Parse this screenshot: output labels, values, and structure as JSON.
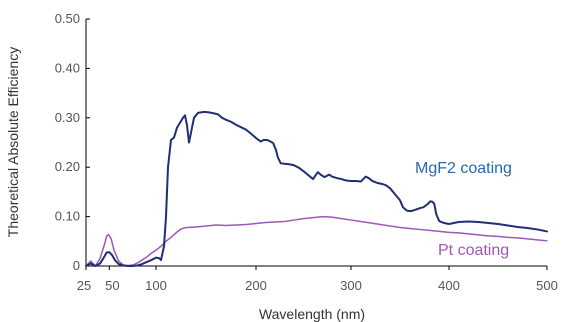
{
  "chart_data": {
    "type": "line",
    "title": "",
    "xlabel": "Wavelength (nm)",
    "ylabel": "Theoretical Absolute Efficiency",
    "xlim": [
      25,
      500
    ],
    "ylim": [
      0,
      0.5
    ],
    "grid": false,
    "x_tick_values": [
      25,
      50,
      100,
      200,
      300,
      400,
      500
    ],
    "x_tick_labels": [
      "25",
      "50",
      "100",
      "200",
      "300",
      "400",
      "500"
    ],
    "y_tick_values": [
      0,
      0.1,
      0.2,
      0.3,
      0.4,
      0.5
    ],
    "y_tick_labels": [
      "0",
      "0.10",
      "0.20",
      "0.30",
      "0.40",
      "0.50"
    ],
    "series": [
      {
        "name": "MgF2 coating",
        "label": "MgF2 coating",
        "color": "#1f2f73",
        "label_color": "#2a67b2",
        "points": [
          [
            25,
            0.0
          ],
          [
            30,
            0.005
          ],
          [
            35,
            0.0
          ],
          [
            40,
            0.005
          ],
          [
            45,
            0.02
          ],
          [
            47,
            0.027
          ],
          [
            50,
            0.028
          ],
          [
            53,
            0.022
          ],
          [
            56,
            0.012
          ],
          [
            60,
            0.004
          ],
          [
            65,
            0.001
          ],
          [
            70,
            0.0
          ],
          [
            75,
            0.0
          ],
          [
            80,
            0.001
          ],
          [
            85,
            0.004
          ],
          [
            90,
            0.008
          ],
          [
            95,
            0.012
          ],
          [
            100,
            0.017
          ],
          [
            103,
            0.016
          ],
          [
            105,
            0.012
          ],
          [
            108,
            0.04
          ],
          [
            110,
            0.1
          ],
          [
            112,
            0.2
          ],
          [
            115,
            0.255
          ],
          [
            118,
            0.26
          ],
          [
            121,
            0.28
          ],
          [
            124,
            0.29
          ],
          [
            127,
            0.3
          ],
          [
            129,
            0.305
          ],
          [
            131,
            0.285
          ],
          [
            133,
            0.25
          ],
          [
            135,
            0.27
          ],
          [
            138,
            0.3
          ],
          [
            142,
            0.31
          ],
          [
            148,
            0.312
          ],
          [
            153,
            0.311
          ],
          [
            158,
            0.309
          ],
          [
            162,
            0.307
          ],
          [
            166,
            0.3
          ],
          [
            170,
            0.296
          ],
          [
            175,
            0.292
          ],
          [
            180,
            0.286
          ],
          [
            185,
            0.281
          ],
          [
            190,
            0.276
          ],
          [
            195,
            0.268
          ],
          [
            200,
            0.259
          ],
          [
            205,
            0.252
          ],
          [
            208,
            0.255
          ],
          [
            212,
            0.255
          ],
          [
            215,
            0.252
          ],
          [
            218,
            0.249
          ],
          [
            221,
            0.235
          ],
          [
            223,
            0.22
          ],
          [
            226,
            0.208
          ],
          [
            230,
            0.207
          ],
          [
            235,
            0.206
          ],
          [
            240,
            0.204
          ],
          [
            245,
            0.199
          ],
          [
            250,
            0.192
          ],
          [
            255,
            0.184
          ],
          [
            260,
            0.176
          ],
          [
            265,
            0.19
          ],
          [
            268,
            0.185
          ],
          [
            272,
            0.18
          ],
          [
            277,
            0.185
          ],
          [
            280,
            0.181
          ],
          [
            285,
            0.178
          ],
          [
            290,
            0.176
          ],
          [
            295,
            0.173
          ],
          [
            300,
            0.172
          ],
          [
            305,
            0.172
          ],
          [
            310,
            0.171
          ],
          [
            315,
            0.181
          ],
          [
            318,
            0.178
          ],
          [
            322,
            0.172
          ],
          [
            327,
            0.168
          ],
          [
            332,
            0.166
          ],
          [
            336,
            0.163
          ],
          [
            340,
            0.157
          ],
          [
            345,
            0.145
          ],
          [
            350,
            0.133
          ],
          [
            353,
            0.119
          ],
          [
            357,
            0.112
          ],
          [
            361,
            0.111
          ],
          [
            366,
            0.114
          ],
          [
            370,
            0.117
          ],
          [
            374,
            0.119
          ],
          [
            378,
            0.125
          ],
          [
            381,
            0.131
          ],
          [
            383,
            0.13
          ],
          [
            385,
            0.126
          ],
          [
            387,
            0.105
          ],
          [
            390,
            0.091
          ],
          [
            395,
            0.087
          ],
          [
            400,
            0.085
          ],
          [
            405,
            0.087
          ],
          [
            410,
            0.089
          ],
          [
            420,
            0.09
          ],
          [
            430,
            0.089
          ],
          [
            440,
            0.087
          ],
          [
            450,
            0.085
          ],
          [
            460,
            0.082
          ],
          [
            470,
            0.079
          ],
          [
            480,
            0.077
          ],
          [
            490,
            0.074
          ],
          [
            500,
            0.07
          ]
        ]
      },
      {
        "name": "Pt coating",
        "label": "Pt coating",
        "color": "#9e58b8",
        "label_color": "#9e58b8",
        "points": [
          [
            25,
            0.0
          ],
          [
            30,
            0.01
          ],
          [
            35,
            0.0
          ],
          [
            40,
            0.015
          ],
          [
            45,
            0.045
          ],
          [
            47,
            0.06
          ],
          [
            49,
            0.064
          ],
          [
            52,
            0.055
          ],
          [
            55,
            0.032
          ],
          [
            60,
            0.01
          ],
          [
            65,
            0.002
          ],
          [
            70,
            0.001
          ],
          [
            75,
            0.002
          ],
          [
            80,
            0.006
          ],
          [
            85,
            0.012
          ],
          [
            90,
            0.018
          ],
          [
            95,
            0.026
          ],
          [
            100,
            0.032
          ],
          [
            105,
            0.04
          ],
          [
            110,
            0.05
          ],
          [
            115,
            0.058
          ],
          [
            120,
            0.067
          ],
          [
            125,
            0.075
          ],
          [
            130,
            0.078
          ],
          [
            140,
            0.079
          ],
          [
            150,
            0.081
          ],
          [
            160,
            0.083
          ],
          [
            170,
            0.082
          ],
          [
            180,
            0.083
          ],
          [
            190,
            0.084
          ],
          [
            200,
            0.086
          ],
          [
            210,
            0.088
          ],
          [
            220,
            0.089
          ],
          [
            230,
            0.09
          ],
          [
            240,
            0.093
          ],
          [
            250,
            0.096
          ],
          [
            260,
            0.098
          ],
          [
            270,
            0.1
          ],
          [
            280,
            0.099
          ],
          [
            290,
            0.096
          ],
          [
            300,
            0.093
          ],
          [
            310,
            0.09
          ],
          [
            320,
            0.087
          ],
          [
            330,
            0.084
          ],
          [
            340,
            0.081
          ],
          [
            350,
            0.078
          ],
          [
            360,
            0.076
          ],
          [
            370,
            0.074
          ],
          [
            380,
            0.072
          ],
          [
            390,
            0.07
          ],
          [
            400,
            0.068
          ],
          [
            410,
            0.067
          ],
          [
            420,
            0.065
          ],
          [
            430,
            0.063
          ],
          [
            440,
            0.061
          ],
          [
            450,
            0.06
          ],
          [
            460,
            0.058
          ],
          [
            470,
            0.057
          ],
          [
            480,
            0.055
          ],
          [
            490,
            0.053
          ],
          [
            500,
            0.051
          ]
        ]
      }
    ]
  }
}
